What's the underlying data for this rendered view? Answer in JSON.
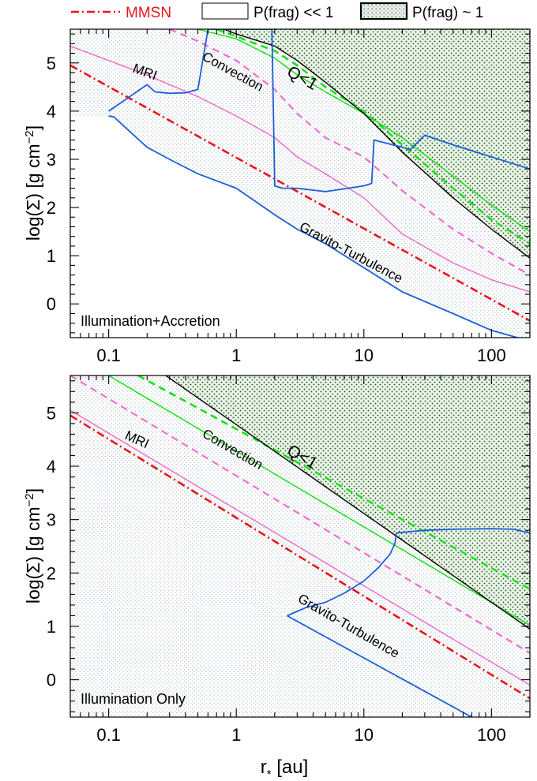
{
  "legend": {
    "mmsn_label": "MMSN",
    "low_label": "P(frag) << 1",
    "high_label": "P(frag) ~ 1",
    "mmsn_color": "#e8141e"
  },
  "colors": {
    "mmsn": "#e8141e",
    "mri": "#ee6fcf",
    "convection": "#19e019",
    "toomre": "#000000",
    "gt": "#1a5fd6",
    "q_fill_dots": "#1b4f1b"
  },
  "chart_data": [
    {
      "type": "line",
      "panel_label": "Illumination+Accretion",
      "xlabel": "",
      "ylabel": "log(Σ) [g cm⁻²]",
      "xscale": "log",
      "xlim": [
        0.05,
        200
      ],
      "ylim": [
        -0.7,
        5.7
      ],
      "xticks": [
        "0.1",
        "1",
        "10",
        "100"
      ],
      "yticks": [
        "0",
        "1",
        "2",
        "3",
        "4",
        "5"
      ],
      "annotations": [
        "MRI",
        "Convection",
        "Q<1",
        "Gravito-Turbulence"
      ],
      "series": [
        {
          "name": "MMSN",
          "x": [
            0.05,
            200
          ],
          "y": [
            4.95,
            -0.35
          ]
        },
        {
          "x": [
            0.05,
            0.1,
            0.2,
            0.3,
            0.5,
            1,
            2,
            3,
            5,
            10,
            20,
            50,
            100,
            200
          ],
          "y": [
            5.35,
            5.05,
            4.75,
            4.55,
            4.3,
            3.9,
            3.45,
            3.05,
            2.7,
            2.2,
            1.45,
            0.85,
            0.5,
            0.25
          ]
        },
        {
          "x": [
            0.3,
            0.5,
            1,
            2,
            3,
            5,
            10,
            20,
            50,
            100,
            200
          ],
          "y": [
            5.7,
            5.45,
            5.05,
            4.45,
            3.95,
            3.45,
            3.05,
            2.35,
            1.55,
            1.05,
            0.6
          ]
        },
        {
          "x": [
            0.5,
            1,
            2,
            3,
            5,
            10,
            20,
            50,
            100,
            200
          ],
          "y": [
            5.7,
            5.5,
            5.1,
            4.75,
            4.4,
            3.95,
            3.45,
            2.65,
            2.05,
            1.5
          ]
        },
        {
          "x": [
            0.7,
            1,
            2,
            3,
            5,
            10,
            20,
            50,
            100,
            200
          ],
          "y": [
            5.7,
            5.55,
            5.25,
            4.95,
            4.5,
            4.0,
            3.3,
            2.4,
            1.75,
            1.25
          ]
        },
        {
          "x": [
            0.8,
            1,
            2,
            3,
            5,
            10,
            20,
            50,
            100,
            200
          ],
          "y": [
            5.7,
            5.6,
            5.35,
            5.05,
            4.6,
            3.95,
            3.15,
            2.2,
            1.55,
            0.95
          ]
        },
        {
          "x": [
            0.1,
            0.11,
            0.15,
            0.2,
            0.3,
            0.5,
            1,
            2,
            3,
            5,
            10,
            20,
            50,
            100,
            160
          ],
          "y": [
            3.9,
            3.88,
            3.55,
            3.25,
            3.0,
            2.7,
            2.4,
            1.85,
            1.55,
            1.25,
            0.75,
            0.25,
            -0.2,
            -0.55,
            -0.7
          ]
        },
        {
          "x": [
            0.1,
            0.2,
            0.23,
            0.3,
            0.4,
            0.5,
            0.6,
            1.9,
            2.0,
            2.3,
            3,
            5,
            10,
            11.5,
            12,
            20,
            23,
            30,
            50,
            100,
            200
          ],
          "y": [
            4.0,
            4.55,
            4.4,
            4.37,
            4.38,
            4.45,
            5.7,
            5.7,
            2.45,
            2.4,
            2.4,
            2.33,
            2.45,
            2.5,
            3.4,
            3.25,
            3.2,
            3.5,
            3.3,
            3.05,
            2.8
          ]
        }
      ]
    },
    {
      "type": "line",
      "panel_label": "Illumination Only",
      "xlabel": "r* [au]",
      "ylabel": "log(Σ) [g cm⁻²]",
      "xscale": "log",
      "xlim": [
        0.05,
        200
      ],
      "ylim": [
        -0.7,
        5.7
      ],
      "xticks": [
        "0.1",
        "1",
        "10",
        "100"
      ],
      "yticks": [
        "0",
        "1",
        "2",
        "3",
        "4",
        "5"
      ],
      "annotations": [
        "MRI",
        "Convection",
        "Q<1",
        "Gravito-Turbulence"
      ],
      "series": [
        {
          "name": "MMSN",
          "x": [
            0.05,
            200
          ],
          "y": [
            4.95,
            -0.35
          ]
        },
        {
          "x": [
            0.05,
            200
          ],
          "y": [
            5.05,
            -0.1
          ]
        },
        {
          "x": [
            0.05,
            200
          ],
          "y": [
            5.7,
            0.5
          ]
        },
        {
          "x": [
            0.1,
            200
          ],
          "y": [
            5.7,
            1.02
          ]
        },
        {
          "x": [
            0.17,
            200
          ],
          "y": [
            5.7,
            1.7
          ]
        },
        {
          "x": [
            0.28,
            200
          ],
          "y": [
            5.7,
            0.95
          ]
        },
        {
          "x": [
            2.5,
            70
          ],
          "y": [
            1.2,
            -0.7
          ]
        },
        {
          "x": [
            2.5,
            3.5,
            5,
            7,
            10,
            13,
            16,
            17.5,
            18,
            30,
            50,
            100,
            150,
            200
          ],
          "y": [
            1.2,
            1.35,
            1.45,
            1.62,
            1.85,
            2.1,
            2.35,
            2.55,
            2.75,
            2.8,
            2.82,
            2.83,
            2.82,
            2.75
          ]
        }
      ]
    }
  ]
}
